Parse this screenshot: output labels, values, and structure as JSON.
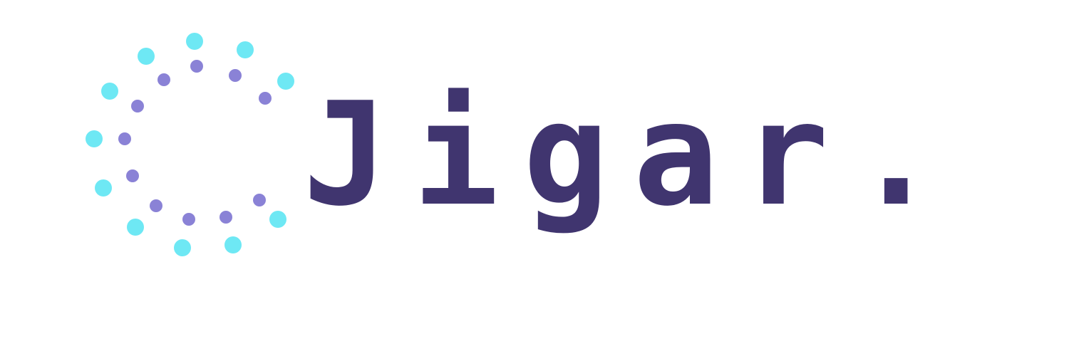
{
  "brand": {
    "name": "Jigar."
  },
  "colors": {
    "wordmark": "#40356f",
    "outer_dots": "#6ee8f4",
    "inner_dots": "#8a82d6",
    "background": "#ffffff"
  },
  "logo": {
    "icon": "dotted-ring-icon"
  }
}
